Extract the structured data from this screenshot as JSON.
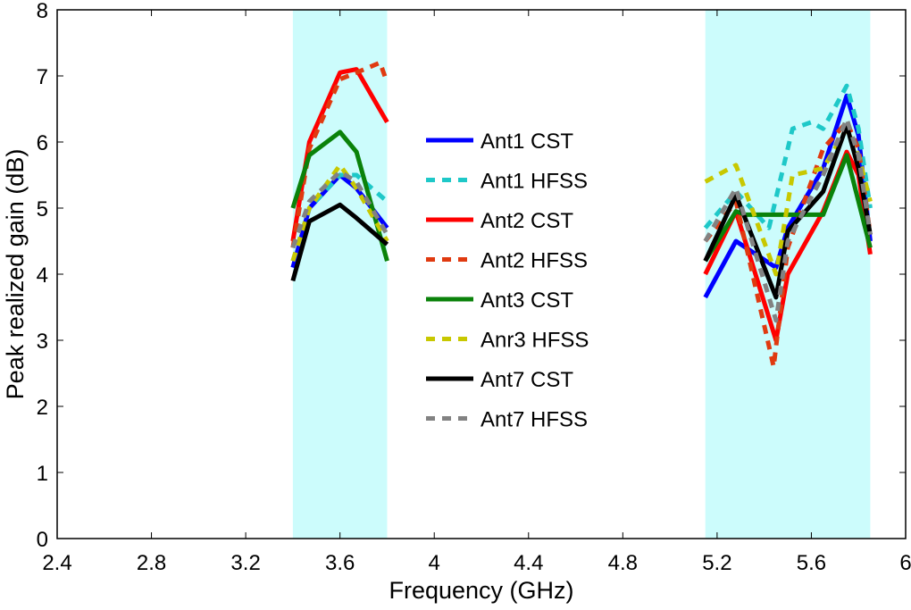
{
  "chart_data": {
    "type": "line",
    "title": "",
    "xlabel": "Frequency (GHz)",
    "ylabel": "Peak realized gain  (dB)",
    "xlim": [
      2.4,
      6
    ],
    "ylim": [
      0,
      8
    ],
    "xticks": [
      "2.4",
      "2.8",
      "3.2",
      "3.6",
      "4",
      "4.4",
      "4.8",
      "5.2",
      "5.6",
      "6"
    ],
    "yticks": [
      "0",
      "1",
      "2",
      "3",
      "4",
      "5",
      "6",
      "7",
      "8"
    ],
    "grid": false,
    "legend_position": "center",
    "shaded_bands": [
      {
        "from": 3.4,
        "to": 3.8,
        "color": "#ccfcfc"
      },
      {
        "from": 5.15,
        "to": 5.85,
        "color": "#ccfcfc"
      }
    ],
    "series": [
      {
        "name": "Ant1 CST",
        "color": "#0000ff",
        "dash": false,
        "segments": [
          {
            "x": [
              3.4,
              3.47,
              3.6,
              3.67,
              3.8
            ],
            "y": [
              4.1,
              5.0,
              5.5,
              5.3,
              4.7
            ]
          },
          {
            "x": [
              5.15,
              5.28,
              5.45,
              5.5,
              5.65,
              5.75,
              5.8,
              5.85
            ],
            "y": [
              3.65,
              4.5,
              4.1,
              4.7,
              5.6,
              6.7,
              6.1,
              4.5
            ]
          }
        ]
      },
      {
        "name": "Ant1 HFSS",
        "color": "#1ec8c8",
        "dash": true,
        "segments": [
          {
            "x": [
              3.4,
              3.47,
              3.6,
              3.67,
              3.8
            ],
            "y": [
              4.2,
              5.0,
              5.5,
              5.5,
              5.1
            ]
          },
          {
            "x": [
              5.15,
              5.28,
              5.42,
              5.52,
              5.6,
              5.65,
              5.75,
              5.8,
              5.85
            ],
            "y": [
              4.7,
              5.25,
              4.7,
              6.2,
              6.3,
              6.2,
              6.85,
              6.2,
              5.0
            ]
          }
        ]
      },
      {
        "name": "Ant2 CST",
        "color": "#ff0000",
        "dash": false,
        "segments": [
          {
            "x": [
              3.4,
              3.47,
              3.6,
              3.67,
              3.8
            ],
            "y": [
              4.5,
              6.0,
              7.05,
              7.1,
              6.3
            ]
          },
          {
            "x": [
              5.15,
              5.28,
              5.45,
              5.5,
              5.65,
              5.75,
              5.8,
              5.85
            ],
            "y": [
              4.0,
              4.95,
              3.0,
              4.0,
              4.95,
              5.85,
              5.5,
              4.3
            ]
          }
        ]
      },
      {
        "name": "Ant2 HFSS",
        "color": "#e03a10",
        "dash": true,
        "segments": [
          {
            "x": [
              3.4,
              3.47,
              3.6,
              3.67,
              3.77,
              3.8
            ],
            "y": [
              4.4,
              5.9,
              6.95,
              7.05,
              7.2,
              6.9
            ]
          },
          {
            "x": [
              5.15,
              5.28,
              5.44,
              5.5,
              5.65,
              5.75,
              5.8,
              5.85
            ],
            "y": [
              4.5,
              5.1,
              2.6,
              4.4,
              5.9,
              6.3,
              5.9,
              4.6
            ]
          }
        ]
      },
      {
        "name": "Ant3 CST",
        "color": "#0a820a",
        "dash": false,
        "segments": [
          {
            "x": [
              3.4,
              3.47,
              3.6,
              3.67,
              3.8
            ],
            "y": [
              5.0,
              5.8,
              6.15,
              5.85,
              4.2
            ]
          },
          {
            "x": [
              5.15,
              5.28,
              5.32,
              5.65,
              5.75,
              5.85
            ],
            "y": [
              4.2,
              4.95,
              4.9,
              4.9,
              5.8,
              4.4
            ]
          }
        ]
      },
      {
        "name": "Anr3 HFSS",
        "color": "#c8c800",
        "dash": true,
        "segments": [
          {
            "x": [
              3.4,
              3.47,
              3.6,
              3.67,
              3.8
            ],
            "y": [
              4.2,
              5.0,
              5.65,
              5.3,
              4.5
            ]
          },
          {
            "x": [
              5.15,
              5.28,
              5.45,
              5.52,
              5.65,
              5.75,
              5.8,
              5.85
            ],
            "y": [
              5.4,
              5.65,
              4.0,
              5.5,
              5.6,
              6.2,
              5.8,
              5.1
            ]
          }
        ]
      },
      {
        "name": "Ant7 CST",
        "color": "#000000",
        "dash": false,
        "segments": [
          {
            "x": [
              3.4,
              3.47,
              3.6,
              3.67,
              3.8
            ],
            "y": [
              3.9,
              4.8,
              5.05,
              4.85,
              4.45
            ]
          },
          {
            "x": [
              5.15,
              5.28,
              5.45,
              5.5,
              5.65,
              5.75,
              5.8,
              5.85
            ],
            "y": [
              4.2,
              5.2,
              3.65,
              4.65,
              5.25,
              6.25,
              5.6,
              4.6
            ]
          }
        ]
      },
      {
        "name": "Ant7 HFSS",
        "color": "#828282",
        "dash": true,
        "segments": [
          {
            "x": [
              3.4,
              3.47,
              3.6,
              3.67,
              3.8
            ],
            "y": [
              4.4,
              5.1,
              5.55,
              5.4,
              4.6
            ]
          },
          {
            "x": [
              5.15,
              5.28,
              5.45,
              5.5,
              5.65,
              5.75,
              5.8,
              5.85
            ],
            "y": [
              4.5,
              5.3,
              3.3,
              4.5,
              5.5,
              6.35,
              5.8,
              4.6
            ]
          }
        ]
      }
    ]
  }
}
